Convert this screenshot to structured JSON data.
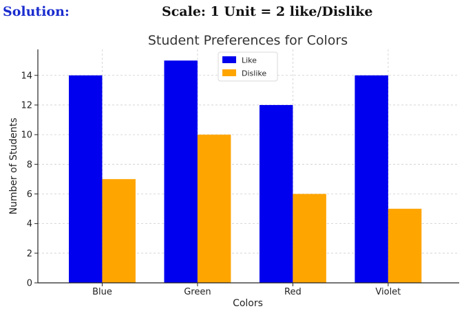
{
  "header": {
    "solution_label": "Solution:",
    "scale_label": "Scale: 1 Unit = 2 like/Dislike"
  },
  "chart_data": {
    "type": "bar",
    "title": "Student Preferences for Colors",
    "xlabel": "Colors",
    "ylabel": "Number of Students",
    "categories": [
      "Blue",
      "Green",
      "Red",
      "Violet"
    ],
    "series": [
      {
        "name": "Like",
        "values": [
          14,
          15,
          12,
          14
        ],
        "color": "#0000ee"
      },
      {
        "name": "Dislike",
        "values": [
          7,
          10,
          6,
          5
        ],
        "color": "#ffa500"
      }
    ],
    "ylim": [
      0,
      15.75
    ],
    "yticks": [
      0,
      2,
      4,
      6,
      8,
      10,
      12,
      14
    ],
    "grid": true,
    "legend_position": "top-center"
  }
}
